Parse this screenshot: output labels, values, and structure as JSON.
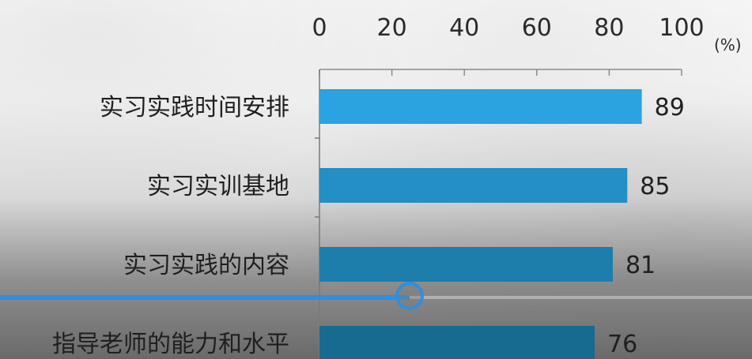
{
  "chart_data": {
    "type": "bar",
    "orientation": "horizontal",
    "categories": [
      "实习实践时间安排",
      "实习实训基地",
      "实习实践的内容",
      "指导老师的能力和水平"
    ],
    "values": [
      89,
      85,
      81,
      76
    ],
    "xlim": [
      0,
      100
    ],
    "xticks": [
      "0",
      "20",
      "40",
      "60",
      "80",
      "100"
    ],
    "unit": "(%)",
    "bar_colors": [
      "#2aa3e0",
      "#238fc4",
      "#1d7eab",
      "#176a90"
    ]
  },
  "player": {
    "progress_fraction": 0.545
  }
}
